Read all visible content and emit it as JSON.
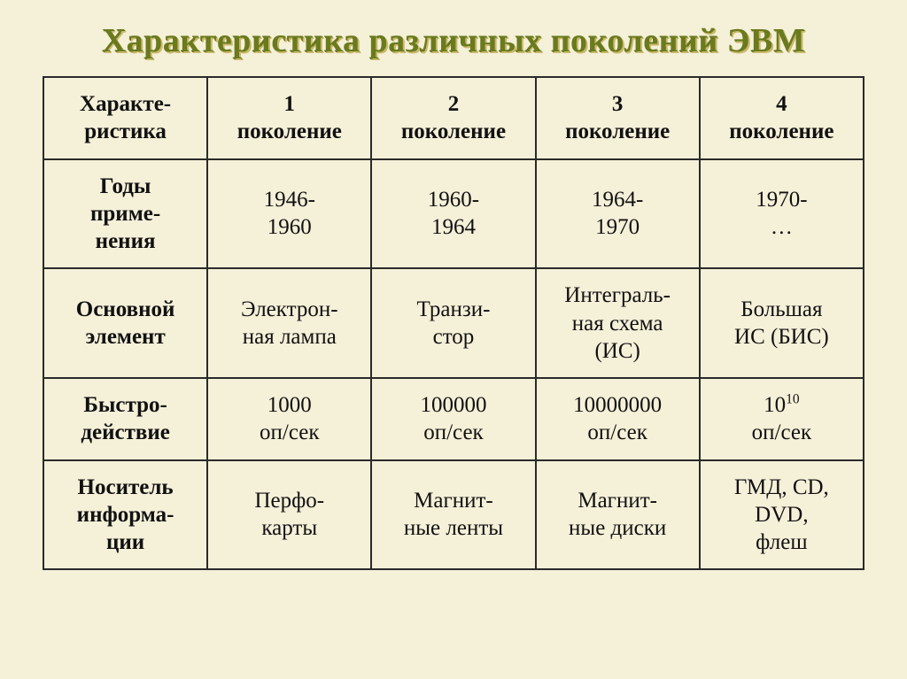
{
  "title": "Характеристика различных поколений ЭВМ",
  "colors": {
    "background": "#f5f0d8",
    "title": "#6a7a1e",
    "title_shadow": "#c9b96a",
    "border": "#2a2a2a",
    "text": "#111111"
  },
  "type": "table",
  "table": {
    "columns": [
      "Характе-ристика",
      "1 поколение",
      "2 поколение",
      "3 поколение",
      "4 поколение"
    ],
    "rows": [
      {
        "label": "Годы приме-нения",
        "cells": [
          "1946-1960",
          "1960-1964",
          "1964-1970",
          "1970-…"
        ]
      },
      {
        "label": "Основной элемент",
        "cells": [
          "Электрон-ная лампа",
          "Транзи-стор",
          "Интеграль-ная схема (ИС)",
          "Большая ИС (БИС)"
        ]
      },
      {
        "label": "Быстро-действие",
        "cells": [
          "1000 оп/сек",
          "100000 оп/сек",
          "10000000 оп/сек",
          "10^10 оп/сек"
        ]
      },
      {
        "label": "Носитель информа-ции",
        "cells": [
          "Перфо-карты",
          "Магнит-ные ленты",
          "Магнит-ные диски",
          "ГМД, CD, DVD, флеш"
        ]
      }
    ],
    "fontsize_header": 25,
    "fontsize_cell": 25,
    "border_width": 2,
    "cell_padding": 14,
    "col_count": 5,
    "row_count": 5
  }
}
